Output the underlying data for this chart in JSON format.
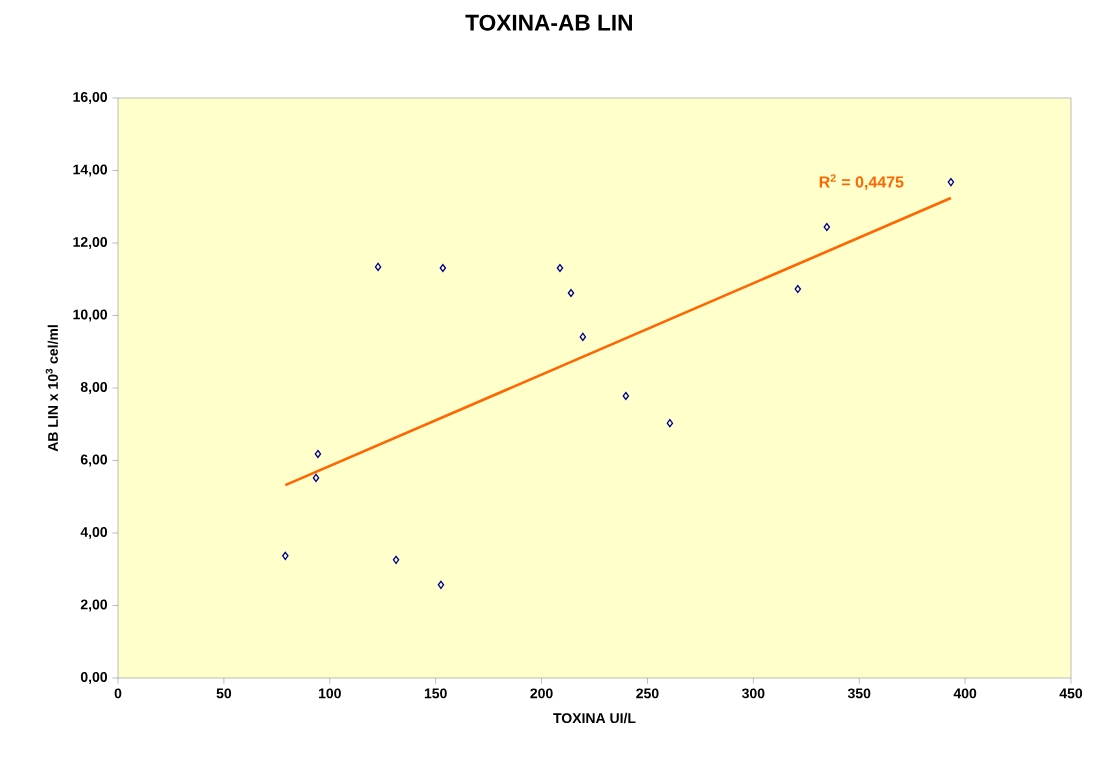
{
  "chart_data": {
    "type": "scatter",
    "title": "TOXINA-AB LIN",
    "xlabel": "TOXINA UI/L",
    "ylabel": "AB LIN x 10$^{3}$ cel/ml",
    "xlim": [
      0,
      450
    ],
    "xticks": [
      0,
      50,
      100,
      150,
      200,
      250,
      300,
      350,
      400,
      450
    ],
    "ylim": [
      0,
      16
    ],
    "yticks": [
      {
        "value": 0,
        "label": "0,00"
      },
      {
        "value": 2,
        "label": "2,00"
      },
      {
        "value": 4,
        "label": "4,00"
      },
      {
        "value": 6,
        "label": "6,00"
      },
      {
        "value": 8,
        "label": "8,00"
      },
      {
        "value": 10,
        "label": "10,00"
      },
      {
        "value": 12,
        "label": "12,00"
      },
      {
        "value": 14,
        "label": "14,00"
      },
      {
        "value": 16,
        "label": "16,00"
      }
    ],
    "grid": false,
    "marker": "diamond",
    "series": [
      {
        "color": "#000080",
        "x": [
          79,
          94.4,
          93.5,
          122.8,
          131.3,
          153.4,
          152.5,
          208.7,
          213.9,
          219.5,
          239.8,
          260.6,
          321,
          334.7,
          393.3
        ],
        "values": [
          3.37,
          6.18,
          5.52,
          11.34,
          3.26,
          11.31,
          2.57,
          11.31,
          10.62,
          9.41,
          7.78,
          7.03,
          10.73,
          12.44,
          13.68
        ]
      },
      {
        "type": "line",
        "marker": "none",
        "color": "#ff6600",
        "x": [
          79,
          393.3
        ],
        "values": [
          5.32,
          13.24
        ]
      }
    ],
    "annotations": [
      "R$^{2}$ = 0,4475"
    ]
  }
}
